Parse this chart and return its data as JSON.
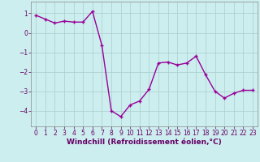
{
  "x": [
    0,
    1,
    2,
    3,
    4,
    5,
    6,
    7,
    8,
    9,
    10,
    11,
    12,
    13,
    14,
    15,
    16,
    17,
    18,
    19,
    20,
    21,
    22,
    23
  ],
  "y": [
    0.9,
    0.7,
    0.5,
    0.6,
    0.55,
    0.55,
    1.1,
    -0.65,
    -4.0,
    -4.3,
    -3.7,
    -3.5,
    -2.9,
    -1.55,
    -1.5,
    -1.65,
    -1.55,
    -1.2,
    -2.15,
    -3.0,
    -3.35,
    -3.1,
    -2.95,
    -2.95
  ],
  "line_color": "#990099",
  "marker": "+",
  "marker_size": 3,
  "bg_color": "#cceeee",
  "grid_color": "#aacccc",
  "xlabel": "Windchill (Refroidissement éolien,°C)",
  "xlabel_fontsize": 6.5,
  "ylim": [
    -4.8,
    1.6
  ],
  "xlim": [
    -0.5,
    23.5
  ],
  "yticks": [
    -4,
    -3,
    -2,
    -1,
    0,
    1
  ],
  "xticks": [
    0,
    1,
    2,
    3,
    4,
    5,
    6,
    7,
    8,
    9,
    10,
    11,
    12,
    13,
    14,
    15,
    16,
    17,
    18,
    19,
    20,
    21,
    22,
    23
  ],
  "tick_fontsize": 5.5,
  "line_width": 1.0,
  "spine_color": "#888888",
  "label_color": "#660066"
}
